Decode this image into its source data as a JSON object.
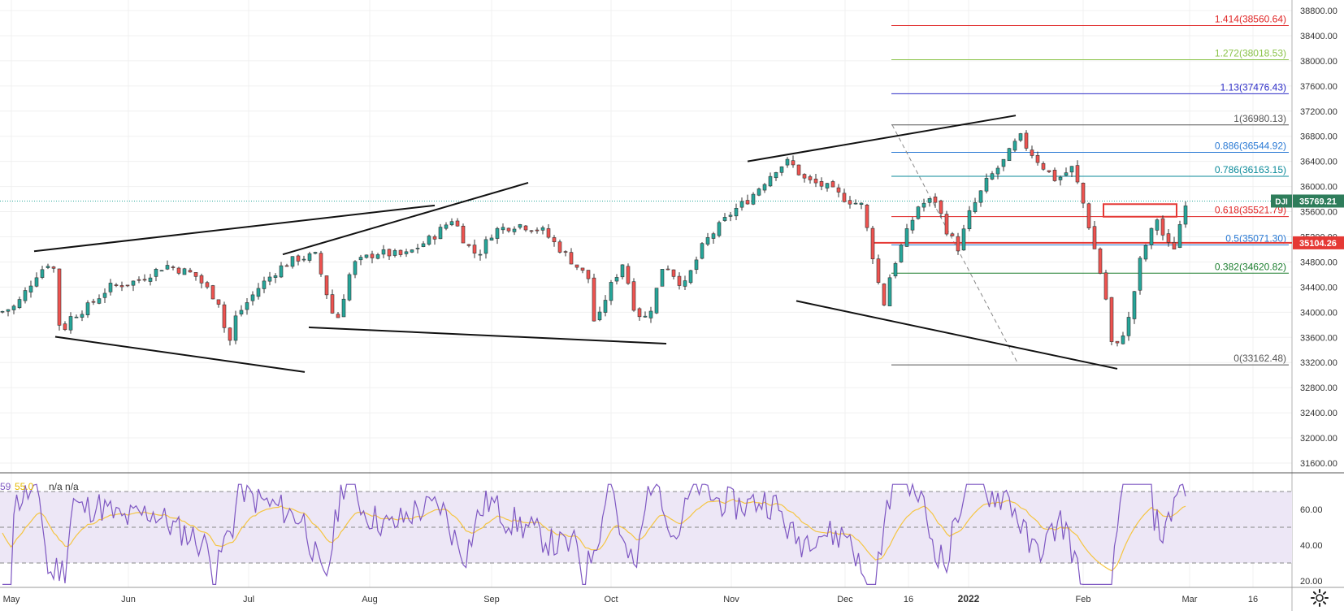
{
  "chart_data": {
    "type": "candlestick",
    "symbol": "DJI",
    "last_price": "35769.21",
    "line_price_label": "35104.26",
    "price_axis": {
      "ylim": [
        31400,
        38800
      ],
      "ticks": [
        "31600.00",
        "32000.00",
        "32400.00",
        "32800.00",
        "33200.00",
        "33600.00",
        "34000.00",
        "34400.00",
        "34800.00",
        "35200.00",
        "35600.00",
        "36000.00",
        "36400.00",
        "36800.00",
        "37200.00",
        "37600.00",
        "38000.00",
        "38400.00",
        "38800.00"
      ]
    },
    "time_axis": {
      "ticks": [
        "May",
        "Jun",
        "Jul",
        "Aug",
        "Sep",
        "Oct",
        "Nov",
        "Dec",
        "16",
        "2022",
        "Feb",
        "Mar",
        "16"
      ]
    },
    "fib_levels": [
      {
        "label": "1.414(38560.64)",
        "price": 38560.64,
        "color": "#e02424"
      },
      {
        "label": "1.272(38018.53)",
        "price": 38018.53,
        "color": "#8bc34a"
      },
      {
        "label": "1.13(37476.43)",
        "price": 37476.43,
        "color": "#2c2cc7"
      },
      {
        "label": "1(36980.13)",
        "price": 36980.13,
        "color": "#555555"
      },
      {
        "label": "0.886(36544.92)",
        "price": 36544.92,
        "color": "#2979d4"
      },
      {
        "label": "0.786(36163.15)",
        "price": 36163.15,
        "color": "#0a8a9a"
      },
      {
        "label": "0.618(35521.79)",
        "price": 35521.79,
        "color": "#e02424"
      },
      {
        "label": "0.5(35071.30)",
        "price": 35071.3,
        "color": "#2979d4"
      },
      {
        "label": "0.382(34620.82)",
        "price": 34620.82,
        "color": "#1b7d2e"
      },
      {
        "label": "0(33162.48)",
        "price": 33162.48,
        "color": "#555555"
      }
    ],
    "price_path": [
      [
        "2021-04-27",
        34000
      ],
      [
        "2021-05-01",
        34100
      ],
      [
        "2021-05-06",
        34600
      ],
      [
        "2021-05-10",
        34850
      ],
      [
        "2021-05-12",
        33600
      ],
      [
        "2021-05-14",
        33900
      ],
      [
        "2021-05-19",
        34100
      ],
      [
        "2021-05-24",
        34400
      ],
      [
        "2021-05-31",
        34500
      ],
      [
        "2021-06-07",
        34750
      ],
      [
        "2021-06-14",
        34600
      ],
      [
        "2021-06-21",
        34100
      ],
      [
        "2021-06-22",
        33300
      ],
      [
        "2021-06-24",
        33900
      ],
      [
        "2021-06-30",
        34400
      ],
      [
        "2021-07-05",
        34700
      ],
      [
        "2021-07-09",
        34850
      ],
      [
        "2021-07-14",
        34900
      ],
      [
        "2021-07-19",
        33800
      ],
      [
        "2021-07-23",
        34750
      ],
      [
        "2021-07-29",
        34950
      ],
      [
        "2021-08-05",
        34900
      ],
      [
        "2021-08-12",
        35200
      ],
      [
        "2021-08-17",
        35500
      ],
      [
        "2021-08-20",
        35100
      ],
      [
        "2021-08-23",
        34900
      ],
      [
        "2021-08-27",
        35300
      ],
      [
        "2021-09-02",
        35400
      ],
      [
        "2021-09-08",
        35300
      ],
      [
        "2021-09-14",
        34900
      ],
      [
        "2021-09-20",
        34500
      ],
      [
        "2021-09-21",
        33700
      ],
      [
        "2021-09-24",
        34300
      ],
      [
        "2021-09-28",
        34800
      ],
      [
        "2021-10-01",
        34000
      ],
      [
        "2021-10-04",
        33900
      ],
      [
        "2021-10-06",
        34300
      ],
      [
        "2021-10-08",
        34800
      ],
      [
        "2021-10-13",
        34400
      ],
      [
        "2021-10-18",
        35100
      ],
      [
        "2021-10-25",
        35600
      ],
      [
        "2021-10-29",
        35800
      ],
      [
        "2021-11-05",
        36300
      ],
      [
        "2021-11-08",
        36400
      ],
      [
        "2021-11-12",
        36100
      ],
      [
        "2021-11-17",
        36000
      ],
      [
        "2021-11-22",
        35800
      ],
      [
        "2021-11-26",
        35700
      ],
      [
        "2021-11-30",
        34500
      ],
      [
        "2021-12-01",
        34000
      ],
      [
        "2021-12-03",
        34600
      ],
      [
        "2021-12-06",
        35100
      ],
      [
        "2021-12-10",
        35700
      ],
      [
        "2021-12-14",
        35800
      ],
      [
        "2021-12-17",
        35300
      ],
      [
        "2021-12-20",
        35000
      ],
      [
        "2021-12-22",
        35500
      ],
      [
        "2021-12-27",
        36100
      ],
      [
        "2021-12-31",
        36400
      ],
      [
        "2022-01-04",
        36800
      ],
      [
        "2022-01-06",
        36600
      ],
      [
        "2022-01-10",
        36300
      ],
      [
        "2022-01-13",
        36100
      ],
      [
        "2022-01-17",
        36300
      ],
      [
        "2022-01-19",
        35900
      ],
      [
        "2022-01-21",
        35400
      ],
      [
        "2022-01-24",
        34600
      ],
      [
        "2022-01-26",
        34000
      ],
      [
        "2022-01-27",
        33300
      ],
      [
        "2022-01-31",
        33900
      ],
      [
        "2022-02-03",
        34900
      ],
      [
        "2022-02-07",
        35500
      ],
      [
        "2022-02-09",
        35100
      ],
      [
        "2022-02-11",
        35000
      ],
      [
        "2022-02-14",
        35769
      ]
    ],
    "rsi": {
      "header_values": [
        "59",
        "55.0",
        "n/a n/a"
      ],
      "axis_ticks": [
        "20.00",
        "40.00",
        "60.00"
      ],
      "upper_band": 70,
      "lower_band": 30,
      "ylim": [
        15,
        75
      ]
    },
    "colors": {
      "up": "#26a69a",
      "down": "#ef5350",
      "rsi_line": "#7e57c2",
      "rsi_ma": "#f5c542",
      "rsi_band_fill": "#ede7f6"
    }
  },
  "ui": {
    "settings_icon": "gear-icon"
  }
}
